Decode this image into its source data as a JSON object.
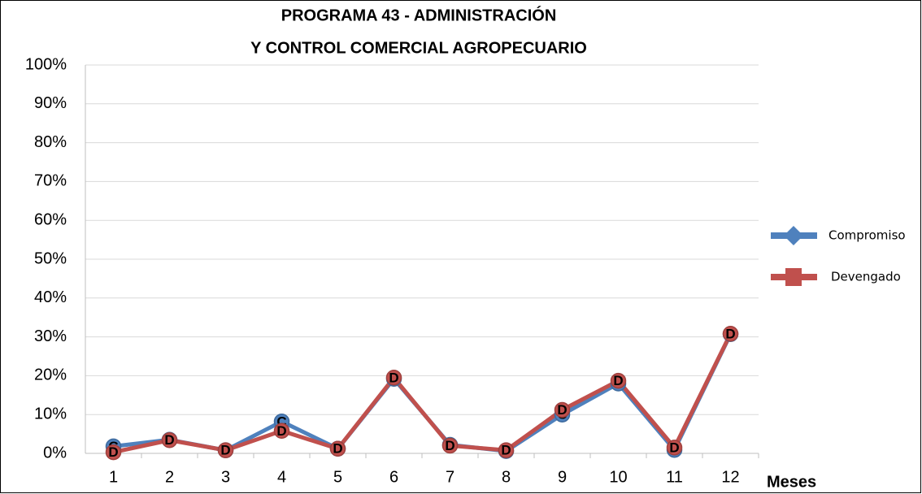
{
  "chart_data": {
    "type": "line",
    "title": [
      "PROGRAMA 43 - ADMINISTRACIÓN",
      "Y CONTROL COMERCIAL AGROPECUARIO"
    ],
    "x_label": "Meses",
    "categories": [
      "1",
      "2",
      "3",
      "4",
      "5",
      "6",
      "7",
      "8",
      "9",
      "10",
      "11",
      "12"
    ],
    "series": [
      {
        "name": "Compromiso",
        "color": "#4f81bd",
        "point_label": "C",
        "values": [
          1.8,
          3.5,
          0.8,
          8.2,
          1.2,
          19.2,
          2.2,
          0.6,
          10,
          18,
          0.9,
          30.7
        ]
      },
      {
        "name": "Devengado",
        "color": "#c0504d",
        "point_label": "D",
        "values": [
          0.3,
          3.4,
          0.8,
          5.8,
          1.2,
          19.5,
          2.0,
          0.8,
          11.2,
          18.7,
          1.5,
          30.8
        ]
      }
    ],
    "ylim": [
      0,
      100
    ],
    "yticks": [
      {
        "value": 0,
        "label": "0%"
      },
      {
        "value": 10,
        "label": "10%"
      },
      {
        "value": 20,
        "label": "20%"
      },
      {
        "value": 30,
        "label": "30%"
      },
      {
        "value": 40,
        "label": "40%"
      },
      {
        "value": 50,
        "label": "50%"
      },
      {
        "value": 60,
        "label": "60%"
      },
      {
        "value": 70,
        "label": "70%"
      },
      {
        "value": 80,
        "label": "80%"
      },
      {
        "value": 90,
        "label": "90%"
      },
      {
        "value": 100,
        "label": "100%"
      }
    ],
    "grid": true,
    "legend": "right"
  }
}
